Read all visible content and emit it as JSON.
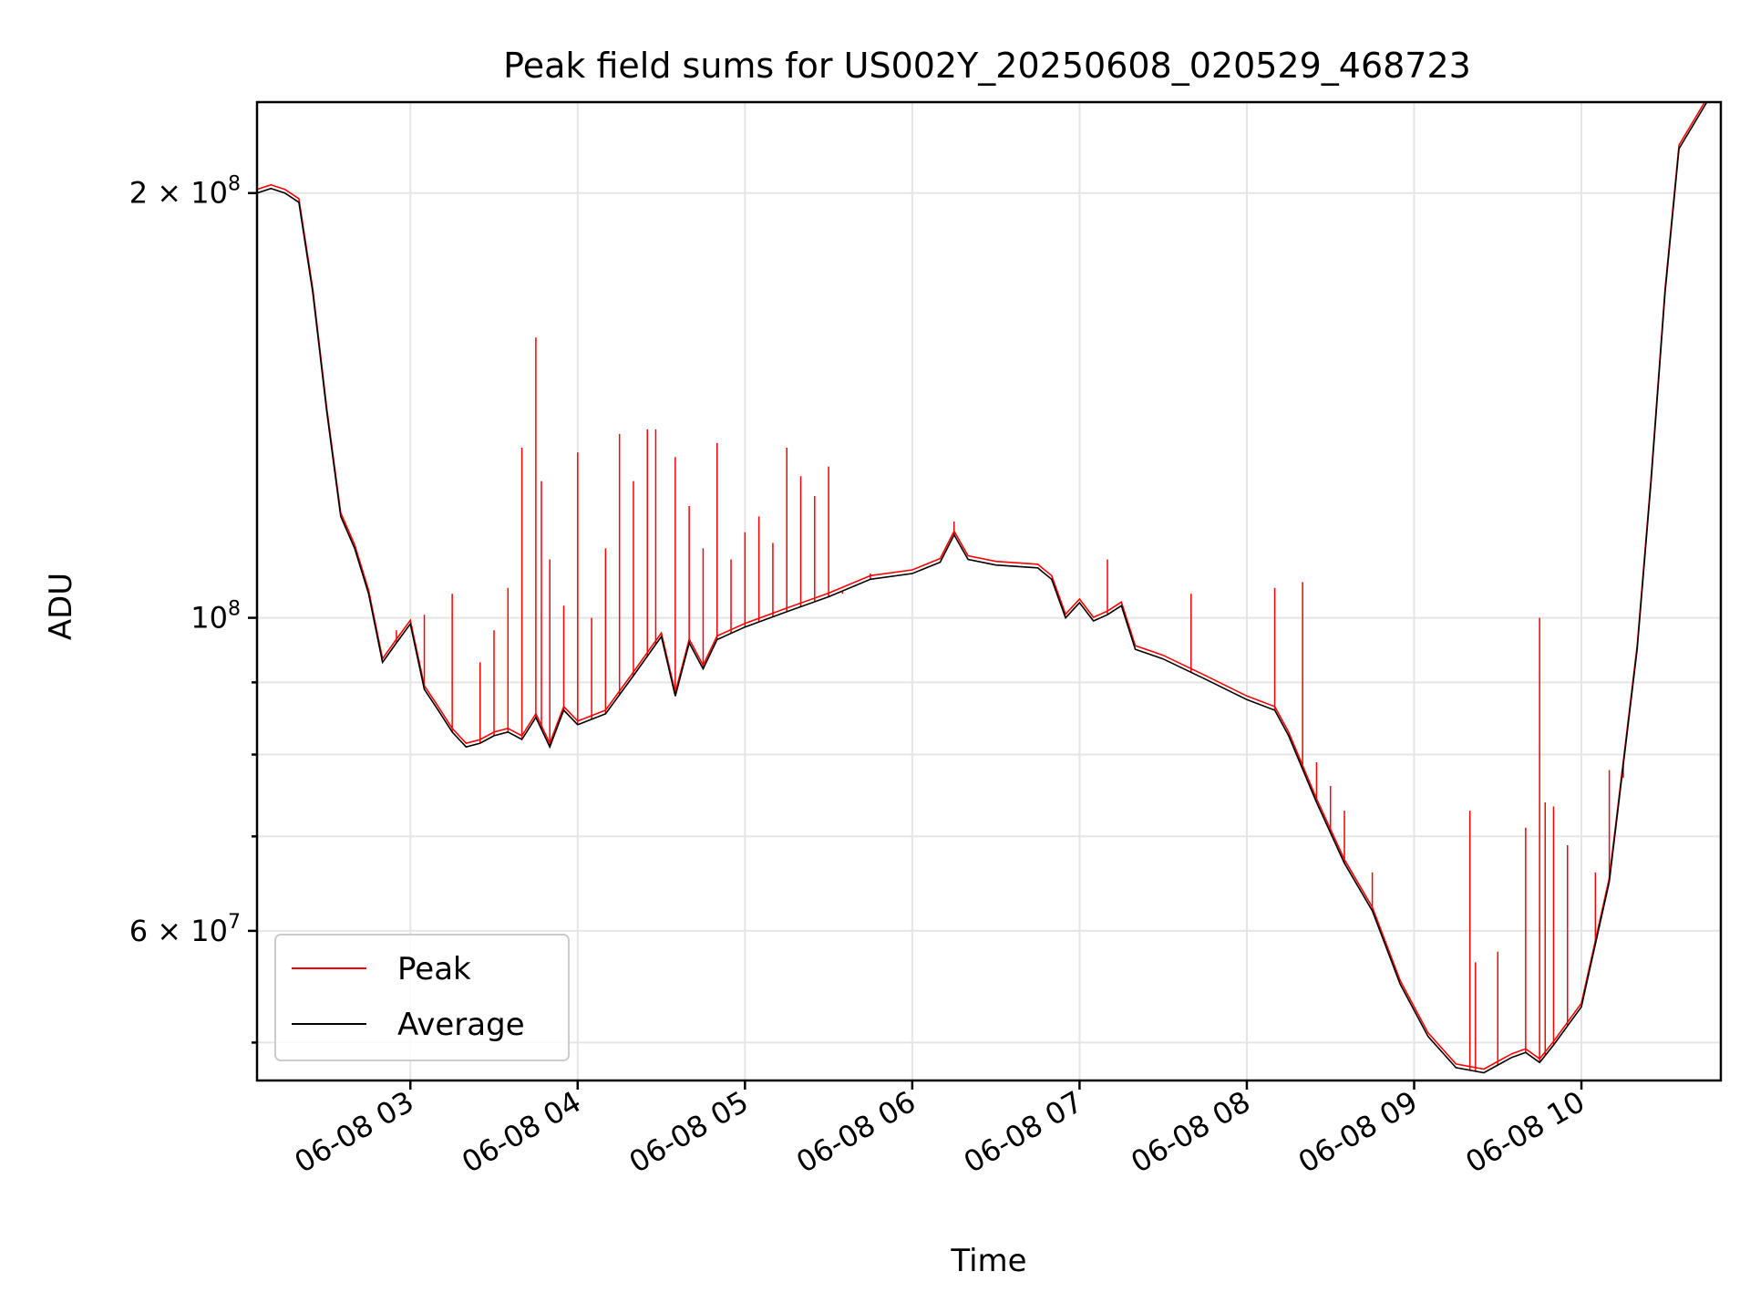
{
  "chart_data": {
    "type": "line",
    "title": "Peak field sums for US002Y_20250608_020529_468723",
    "xlabel": "Time",
    "ylabel": "ADU",
    "yscale": "log",
    "grid": true,
    "legend_position": "lower-left",
    "xlim": [
      "06-08 02:05",
      "06-08 10:50"
    ],
    "ylim": [
      47000000,
      232000000
    ],
    "x_ticks": [
      {
        "value": "06-08 03:00",
        "label": "06-08 03"
      },
      {
        "value": "06-08 04:00",
        "label": "06-08 04"
      },
      {
        "value": "06-08 05:00",
        "label": "06-08 05"
      },
      {
        "value": "06-08 06:00",
        "label": "06-08 06"
      },
      {
        "value": "06-08 07:00",
        "label": "06-08 07"
      },
      {
        "value": "06-08 08:00",
        "label": "06-08 08"
      },
      {
        "value": "06-08 09:00",
        "label": "06-08 09"
      },
      {
        "value": "06-08 10:00",
        "label": "06-08 10"
      }
    ],
    "y_major_ticks": [
      {
        "value": 60000000,
        "mantissa": "6",
        "times": "×",
        "base": "10",
        "exp": "7"
      },
      {
        "value": 100000000,
        "mantissa": "",
        "times": "",
        "base": "10",
        "exp": "8"
      },
      {
        "value": 200000000,
        "mantissa": "2",
        "times": "×",
        "base": "10",
        "exp": "8"
      }
    ],
    "y_minor_ticks": [
      50000000,
      70000000,
      80000000,
      90000000
    ],
    "series": [
      {
        "name": "Average",
        "color": "#000000",
        "points": [
          [
            "06-08 02:05",
            200000000
          ],
          [
            "06-08 02:10",
            201500000
          ],
          [
            "06-08 02:15",
            200000000
          ],
          [
            "06-08 02:20",
            197000000
          ],
          [
            "06-08 02:25",
            170000000
          ],
          [
            "06-08 02:30",
            140000000
          ],
          [
            "06-08 02:35",
            118000000
          ],
          [
            "06-08 02:40",
            112000000
          ],
          [
            "06-08 02:45",
            104000000
          ],
          [
            "06-08 02:50",
            93000000
          ],
          [
            "06-08 02:55",
            96000000
          ],
          [
            "06-08 03:00",
            99000000
          ],
          [
            "06-08 03:05",
            89000000
          ],
          [
            "06-08 03:10",
            86000000
          ],
          [
            "06-08 03:15",
            83000000
          ],
          [
            "06-08 03:20",
            81000000
          ],
          [
            "06-08 03:25",
            81500000
          ],
          [
            "06-08 03:30",
            82500000
          ],
          [
            "06-08 03:35",
            83000000
          ],
          [
            "06-08 03:40",
            82000000
          ],
          [
            "06-08 03:45",
            85000000
          ],
          [
            "06-08 03:50",
            81000000
          ],
          [
            "06-08 03:55",
            86000000
          ],
          [
            "06-08 04:00",
            84000000
          ],
          [
            "06-08 04:10",
            85500000
          ],
          [
            "06-08 04:20",
            91000000
          ],
          [
            "06-08 04:30",
            97000000
          ],
          [
            "06-08 04:35",
            88000000
          ],
          [
            "06-08 04:40",
            96000000
          ],
          [
            "06-08 04:45",
            92000000
          ],
          [
            "06-08 04:50",
            96500000
          ],
          [
            "06-08 05:00",
            98500000
          ],
          [
            "06-08 05:15",
            101000000
          ],
          [
            "06-08 05:30",
            103500000
          ],
          [
            "06-08 05:45",
            106500000
          ],
          [
            "06-08 06:00",
            107500000
          ],
          [
            "06-08 06:10",
            109500000
          ],
          [
            "06-08 06:15",
            114500000
          ],
          [
            "06-08 06:20",
            110000000
          ],
          [
            "06-08 06:30",
            109000000
          ],
          [
            "06-08 06:45",
            108500000
          ],
          [
            "06-08 06:50",
            106500000
          ],
          [
            "06-08 06:55",
            100000000
          ],
          [
            "06-08 07:00",
            102500000
          ],
          [
            "06-08 07:05",
            99500000
          ],
          [
            "06-08 07:10",
            100500000
          ],
          [
            "06-08 07:15",
            102000000
          ],
          [
            "06-08 07:20",
            95000000
          ],
          [
            "06-08 07:30",
            93500000
          ],
          [
            "06-08 07:45",
            90500000
          ],
          [
            "06-08 08:00",
            87500000
          ],
          [
            "06-08 08:10",
            86000000
          ],
          [
            "06-08 08:15",
            82500000
          ],
          [
            "06-08 08:25",
            74000000
          ],
          [
            "06-08 08:35",
            67000000
          ],
          [
            "06-08 08:45",
            62000000
          ],
          [
            "06-08 08:55",
            55000000
          ],
          [
            "06-08 09:05",
            50500000
          ],
          [
            "06-08 09:15",
            48000000
          ],
          [
            "06-08 09:25",
            47600000
          ],
          [
            "06-08 09:35",
            48800000
          ],
          [
            "06-08 09:40",
            49200000
          ],
          [
            "06-08 09:45",
            48400000
          ],
          [
            "06-08 09:50",
            49800000
          ],
          [
            "06-08 10:00",
            53000000
          ],
          [
            "06-08 10:10",
            65000000
          ],
          [
            "06-08 10:20",
            95000000
          ],
          [
            "06-08 10:25",
            125000000
          ],
          [
            "06-08 10:30",
            170000000
          ],
          [
            "06-08 10:35",
            215000000
          ],
          [
            "06-08 10:45",
            232000000
          ]
        ]
      },
      {
        "name": "Peak",
        "color": "#ff0000",
        "spikes": [
          [
            "06-08 02:55",
            98000000
          ],
          [
            "06-08 03:05",
            100500000
          ],
          [
            "06-08 03:15",
            104000000
          ],
          [
            "06-08 03:25",
            93000000
          ],
          [
            "06-08 03:30",
            98000000
          ],
          [
            "06-08 03:35",
            105000000
          ],
          [
            "06-08 03:40",
            132000000
          ],
          [
            "06-08 03:45",
            158000000
          ],
          [
            "06-08 03:47",
            125000000
          ],
          [
            "06-08 03:50",
            110000000
          ],
          [
            "06-08 03:55",
            102000000
          ],
          [
            "06-08 04:00",
            131000000
          ],
          [
            "06-08 04:05",
            100000000
          ],
          [
            "06-08 04:10",
            112000000
          ],
          [
            "06-08 04:15",
            135000000
          ],
          [
            "06-08 04:20",
            125000000
          ],
          [
            "06-08 04:25",
            136000000
          ],
          [
            "06-08 04:28",
            136000000
          ],
          [
            "06-08 04:35",
            130000000
          ],
          [
            "06-08 04:40",
            120000000
          ],
          [
            "06-08 04:45",
            112000000
          ],
          [
            "06-08 04:50",
            133000000
          ],
          [
            "06-08 04:55",
            110000000
          ],
          [
            "06-08 05:00",
            115000000
          ],
          [
            "06-08 05:05",
            118000000
          ],
          [
            "06-08 05:10",
            113000000
          ],
          [
            "06-08 05:15",
            132000000
          ],
          [
            "06-08 05:20",
            126000000
          ],
          [
            "06-08 05:25",
            122000000
          ],
          [
            "06-08 05:30",
            128000000
          ],
          [
            "06-08 05:35",
            104000000
          ],
          [
            "06-08 05:45",
            107500000
          ],
          [
            "06-08 06:15",
            117000000
          ],
          [
            "06-08 07:10",
            110000000
          ],
          [
            "06-08 07:40",
            104000000
          ],
          [
            "06-08 08:10",
            105000000
          ],
          [
            "06-08 08:20",
            106000000
          ],
          [
            "06-08 08:25",
            79000000
          ],
          [
            "06-08 08:30",
            76000000
          ],
          [
            "06-08 08:35",
            73000000
          ],
          [
            "06-08 08:45",
            66000000
          ],
          [
            "06-08 09:20",
            73000000
          ],
          [
            "06-08 09:22",
            57000000
          ],
          [
            "06-08 09:30",
            58000000
          ],
          [
            "06-08 09:40",
            71000000
          ],
          [
            "06-08 09:45",
            100000000
          ],
          [
            "06-08 09:47",
            74000000
          ],
          [
            "06-08 09:50",
            73500000
          ],
          [
            "06-08 09:55",
            69000000
          ],
          [
            "06-08 10:05",
            66000000
          ],
          [
            "06-08 10:10",
            78000000
          ],
          [
            "06-08 10:15",
            77000000
          ],
          [
            "06-08 10:25",
            126000000
          ]
        ]
      }
    ],
    "legend": [
      {
        "label": "Peak",
        "color": "#ff0000"
      },
      {
        "label": "Average",
        "color": "#000000"
      }
    ]
  }
}
